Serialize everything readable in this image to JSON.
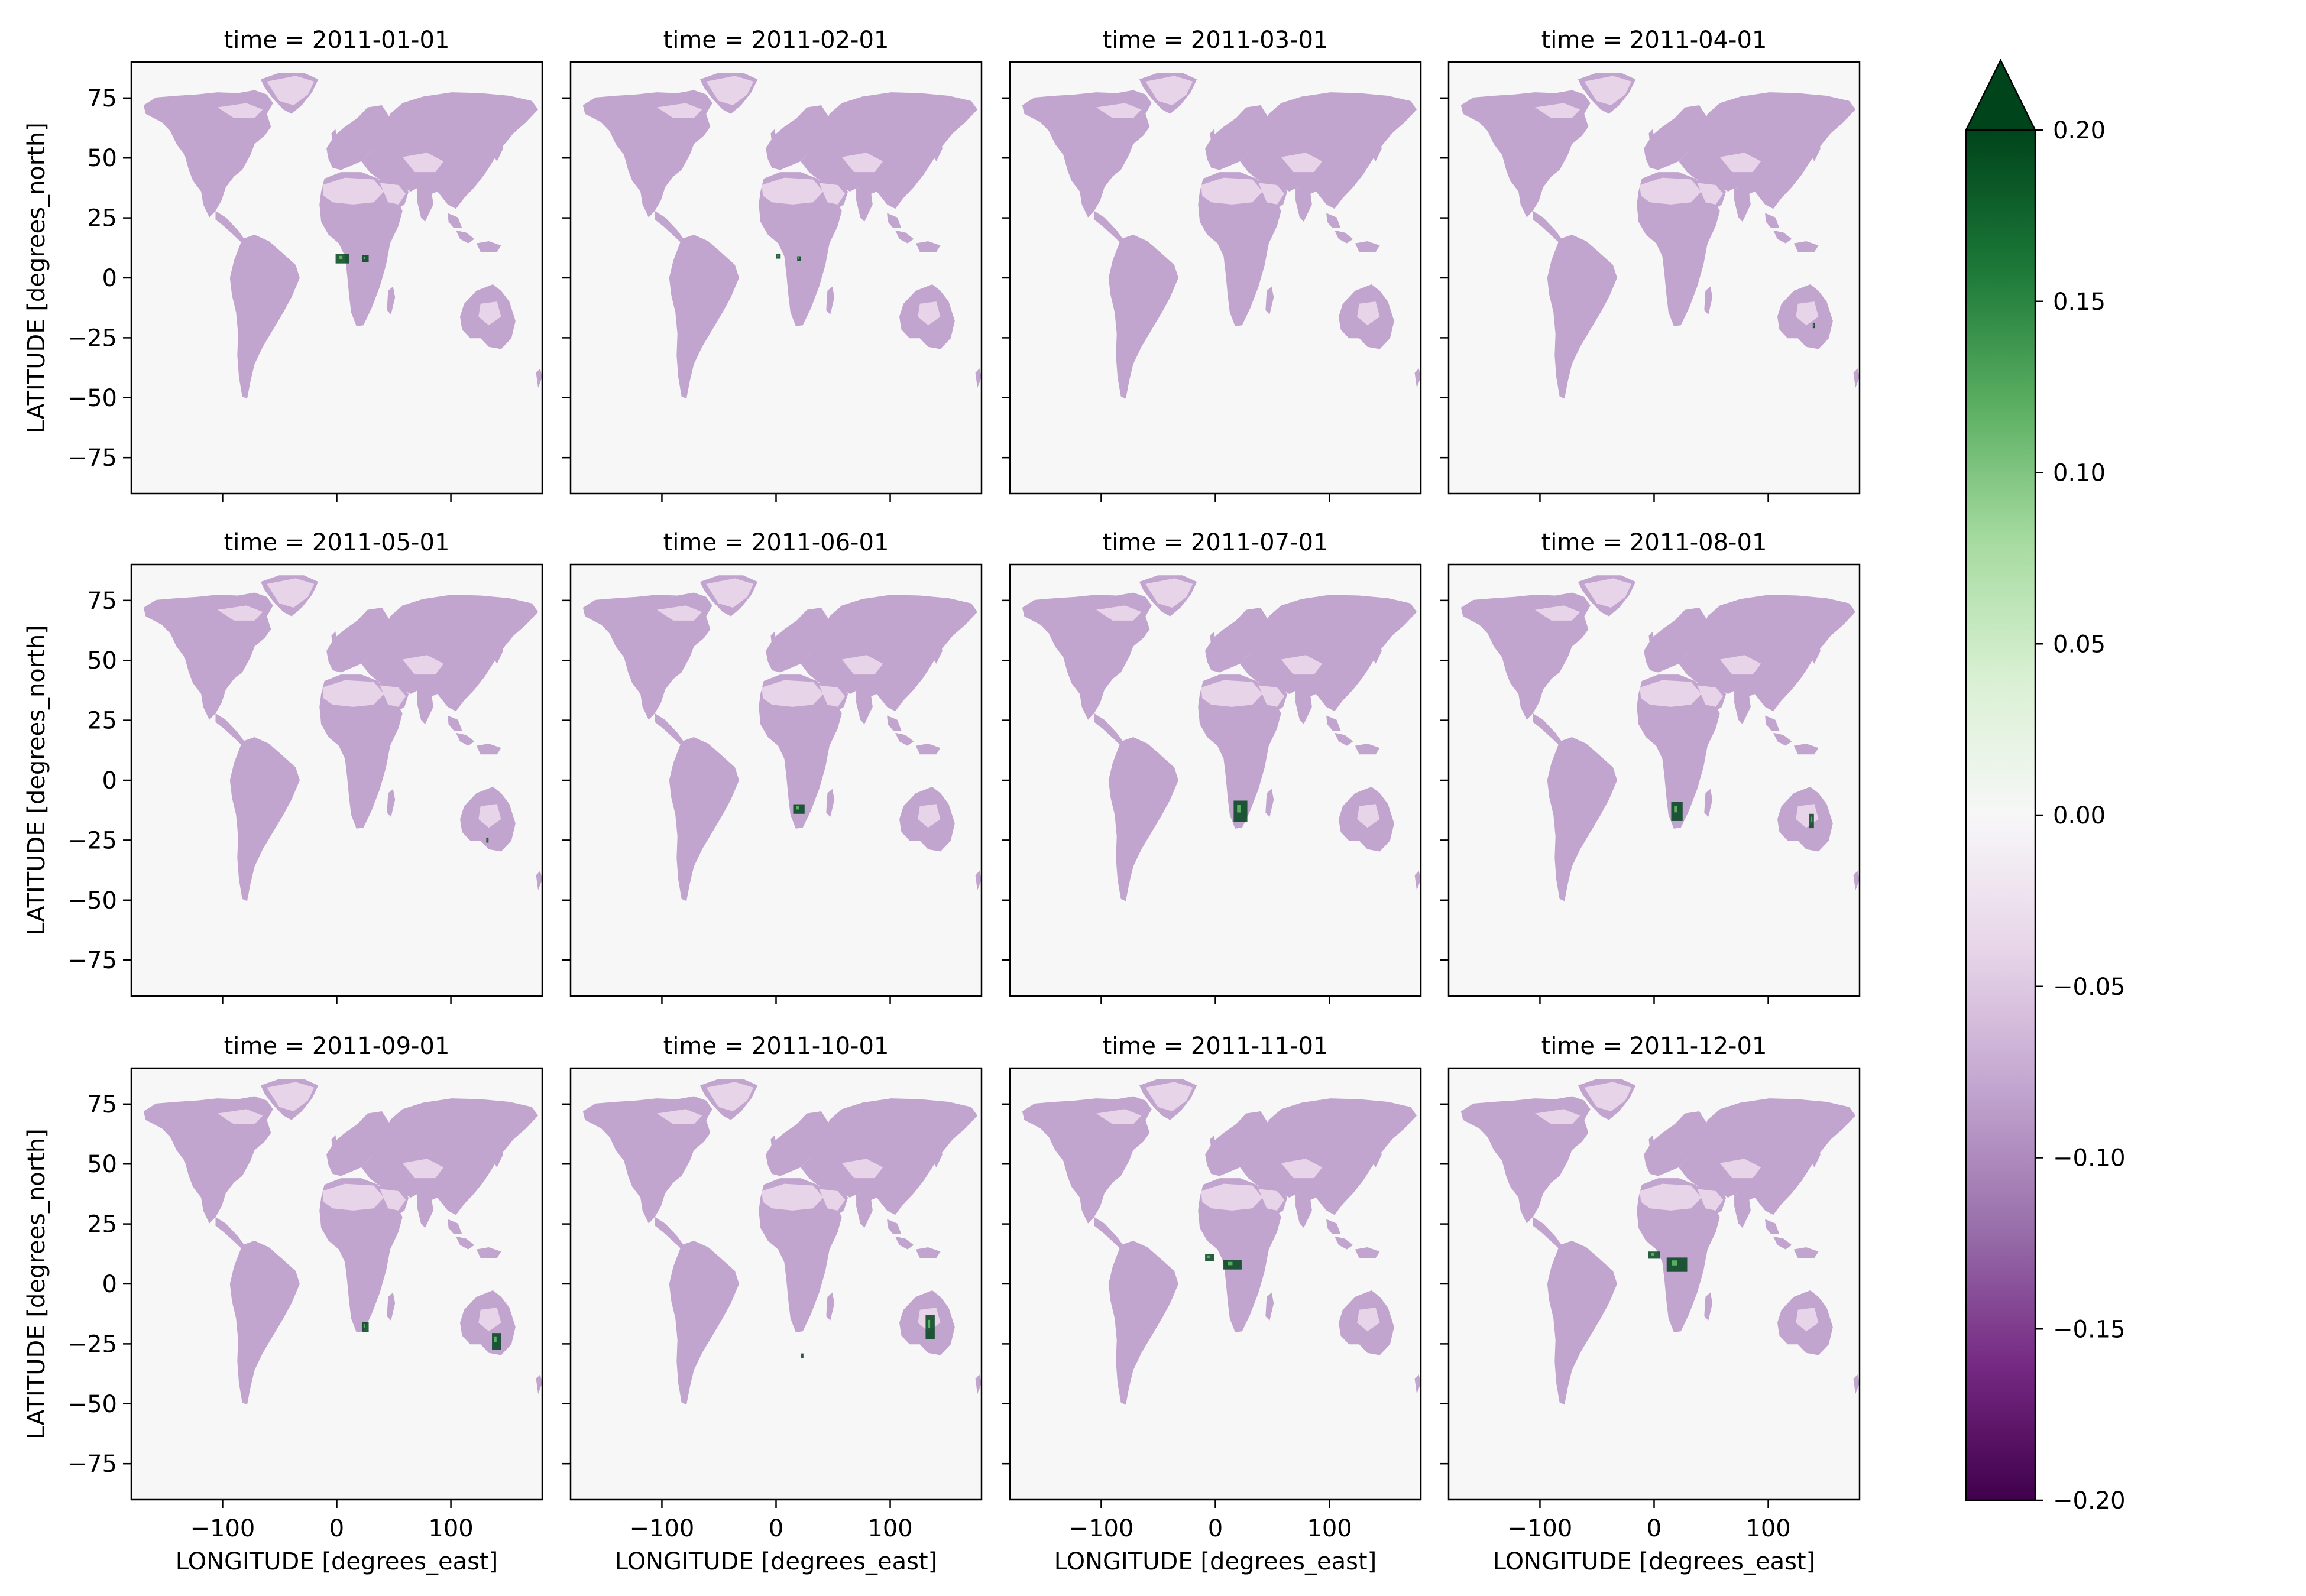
{
  "chart_data": {
    "type": "heatmap",
    "layout": "facet-grid",
    "rows": 3,
    "cols": 4,
    "facet_label_prefix": "time = ",
    "panels": [
      {
        "time": "2011-01-01",
        "hotspots": [
          {
            "lon": 5,
            "lat": 8,
            "w": 12,
            "h": 4
          },
          {
            "lon": 25,
            "lat": 8,
            "w": 6,
            "h": 3
          }
        ]
      },
      {
        "time": "2011-02-01",
        "hotspots": [
          {
            "lon": 2,
            "lat": 9,
            "w": 4,
            "h": 2
          },
          {
            "lon": 20,
            "lat": 8,
            "w": 3,
            "h": 2
          }
        ]
      },
      {
        "time": "2011-03-01",
        "hotspots": []
      },
      {
        "time": "2011-04-01",
        "hotspots": [
          {
            "lon": 140,
            "lat": -20,
            "w": 2,
            "h": 2
          }
        ]
      },
      {
        "time": "2011-05-01",
        "hotspots": [
          {
            "lon": 132,
            "lat": -25,
            "w": 2,
            "h": 2
          }
        ]
      },
      {
        "time": "2011-06-01",
        "hotspots": [
          {
            "lon": 20,
            "lat": -12,
            "w": 10,
            "h": 4
          }
        ]
      },
      {
        "time": "2011-07-01",
        "hotspots": [
          {
            "lon": 22,
            "lat": -13,
            "w": 12,
            "h": 9
          }
        ]
      },
      {
        "time": "2011-08-01",
        "hotspots": [
          {
            "lon": 20,
            "lat": -13,
            "w": 10,
            "h": 8
          },
          {
            "lon": 138,
            "lat": -17,
            "w": 4,
            "h": 6
          }
        ]
      },
      {
        "time": "2011-09-01",
        "hotspots": [
          {
            "lon": 25,
            "lat": -18,
            "w": 6,
            "h": 4
          },
          {
            "lon": 140,
            "lat": -24,
            "w": 8,
            "h": 7
          }
        ]
      },
      {
        "time": "2011-10-01",
        "hotspots": [
          {
            "lon": 23,
            "lat": -30,
            "w": 2,
            "h": 2
          },
          {
            "lon": 135,
            "lat": -18,
            "w": 8,
            "h": 10
          }
        ]
      },
      {
        "time": "2011-11-01",
        "hotspots": [
          {
            "lon": -5,
            "lat": 11,
            "w": 8,
            "h": 3
          },
          {
            "lon": 15,
            "lat": 8,
            "w": 16,
            "h": 4
          }
        ]
      },
      {
        "time": "2011-12-01",
        "hotspots": [
          {
            "lon": 0,
            "lat": 12,
            "w": 10,
            "h": 3
          },
          {
            "lon": 20,
            "lat": 8,
            "w": 18,
            "h": 6
          }
        ]
      }
    ],
    "x_ticks": [
      -100,
      0,
      100
    ],
    "y_ticks": [
      75,
      50,
      25,
      0,
      -25,
      -50,
      -75
    ],
    "xlim": [
      -180,
      180
    ],
    "ylim": [
      -90,
      90
    ],
    "xlabel": "LONGITUDE [degrees_east]",
    "ylabel": "LATITUDE [degrees_north]",
    "colorbar": {
      "ticks": [
        "0.20",
        "0.15",
        "0.10",
        "0.05",
        "0.00",
        "−0.05",
        "−0.10",
        "−0.15",
        "−0.20"
      ],
      "vmin": -0.2,
      "vmax": 0.2,
      "extend": "max",
      "colormap": "PRGn",
      "colors": [
        "#40004b",
        "#762a83",
        "#9970ab",
        "#c2a5cf",
        "#e7d4e8",
        "#f7f7f7",
        "#d9f0d3",
        "#a6dba0",
        "#5aae61",
        "#1b7837",
        "#00441b"
      ]
    },
    "land_color": "#c2a5cf",
    "land_color_light": "#e7d4e8",
    "ocean_color": "#f7f7f7",
    "hotspot_color": "#00441b"
  }
}
